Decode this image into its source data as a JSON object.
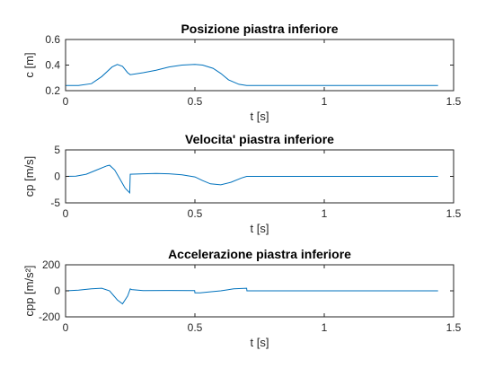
{
  "colors": {
    "series": "#0072BD",
    "axis": "#262626",
    "background": "#ffffff"
  },
  "chart_data": [
    {
      "type": "line",
      "title": "Posizione piastra inferiore",
      "xlabel": "t [s]",
      "ylabel": "c [m]",
      "xlim": [
        0,
        1.5
      ],
      "ylim": [
        0.2,
        0.6
      ],
      "xticks": [
        0,
        0.5,
        1,
        1.5
      ],
      "xticklabels": [
        "0",
        "0.5",
        "1",
        "1.5"
      ],
      "yticks": [
        0.2,
        0.4,
        0.6
      ],
      "yticklabels": [
        "0.2",
        "0.4",
        "0.6"
      ],
      "grid": false,
      "series": [
        {
          "x": [
            0,
            0.05,
            0.1,
            0.14,
            0.18,
            0.2,
            0.22,
            0.24,
            0.25,
            0.3,
            0.35,
            0.4,
            0.45,
            0.5,
            0.53,
            0.57,
            0.6,
            0.63,
            0.67,
            0.7,
            1.0,
            1.44
          ],
          "y": [
            0.24,
            0.24,
            0.255,
            0.31,
            0.385,
            0.405,
            0.39,
            0.34,
            0.325,
            0.34,
            0.36,
            0.385,
            0.4,
            0.405,
            0.4,
            0.375,
            0.335,
            0.285,
            0.25,
            0.24,
            0.24,
            0.24
          ]
        }
      ]
    },
    {
      "type": "line",
      "title": "Velocita' piastra inferiore",
      "xlabel": "t [s]",
      "ylabel": "cp [m/s]",
      "xlim": [
        0,
        1.5
      ],
      "ylim": [
        -5,
        5
      ],
      "xticks": [
        0,
        0.5,
        1,
        1.5
      ],
      "xticklabels": [
        "0",
        "0.5",
        "1",
        "1.5"
      ],
      "yticks": [
        -5,
        0,
        5
      ],
      "yticklabels": [
        "-5",
        "0",
        "5"
      ],
      "grid": false,
      "series": [
        {
          "x": [
            0,
            0.04,
            0.08,
            0.12,
            0.16,
            0.17,
            0.19,
            0.21,
            0.23,
            0.248,
            0.25,
            0.3,
            0.35,
            0.4,
            0.45,
            0.5,
            0.53,
            0.56,
            0.6,
            0.64,
            0.68,
            0.7,
            1.0,
            1.44
          ],
          "y": [
            0,
            0.05,
            0.4,
            1.2,
            2.0,
            2.1,
            1.2,
            -0.5,
            -2.2,
            -3.1,
            0.4,
            0.5,
            0.55,
            0.5,
            0.3,
            -0.1,
            -0.8,
            -1.4,
            -1.6,
            -1.1,
            -0.3,
            0,
            0,
            0
          ]
        }
      ]
    },
    {
      "type": "line",
      "title": "Accelerazione piastra inferiore",
      "xlabel": "t [s]",
      "ylabel": "cpp [m/s²]",
      "xlim": [
        0,
        1.5
      ],
      "ylim": [
        -200,
        200
      ],
      "xticks": [
        0,
        0.5,
        1,
        1.5
      ],
      "xticklabels": [
        "0",
        "0.5",
        "1",
        "1.5"
      ],
      "yticks": [
        -200,
        0,
        200
      ],
      "yticklabels": [
        "-200",
        "0",
        "200"
      ],
      "grid": false,
      "series": [
        {
          "x": [
            0,
            0.05,
            0.1,
            0.14,
            0.17,
            0.2,
            0.22,
            0.24,
            0.25,
            0.255,
            0.3,
            0.4,
            0.499,
            0.5,
            0.52,
            0.55,
            0.6,
            0.65,
            0.7,
            0.701,
            1.0,
            1.44
          ],
          "y": [
            0,
            5,
            15,
            20,
            0,
            -70,
            -100,
            -40,
            15,
            10,
            2,
            3,
            2,
            -15,
            -15,
            -10,
            0,
            15,
            20,
            0,
            0,
            0
          ]
        }
      ]
    }
  ]
}
